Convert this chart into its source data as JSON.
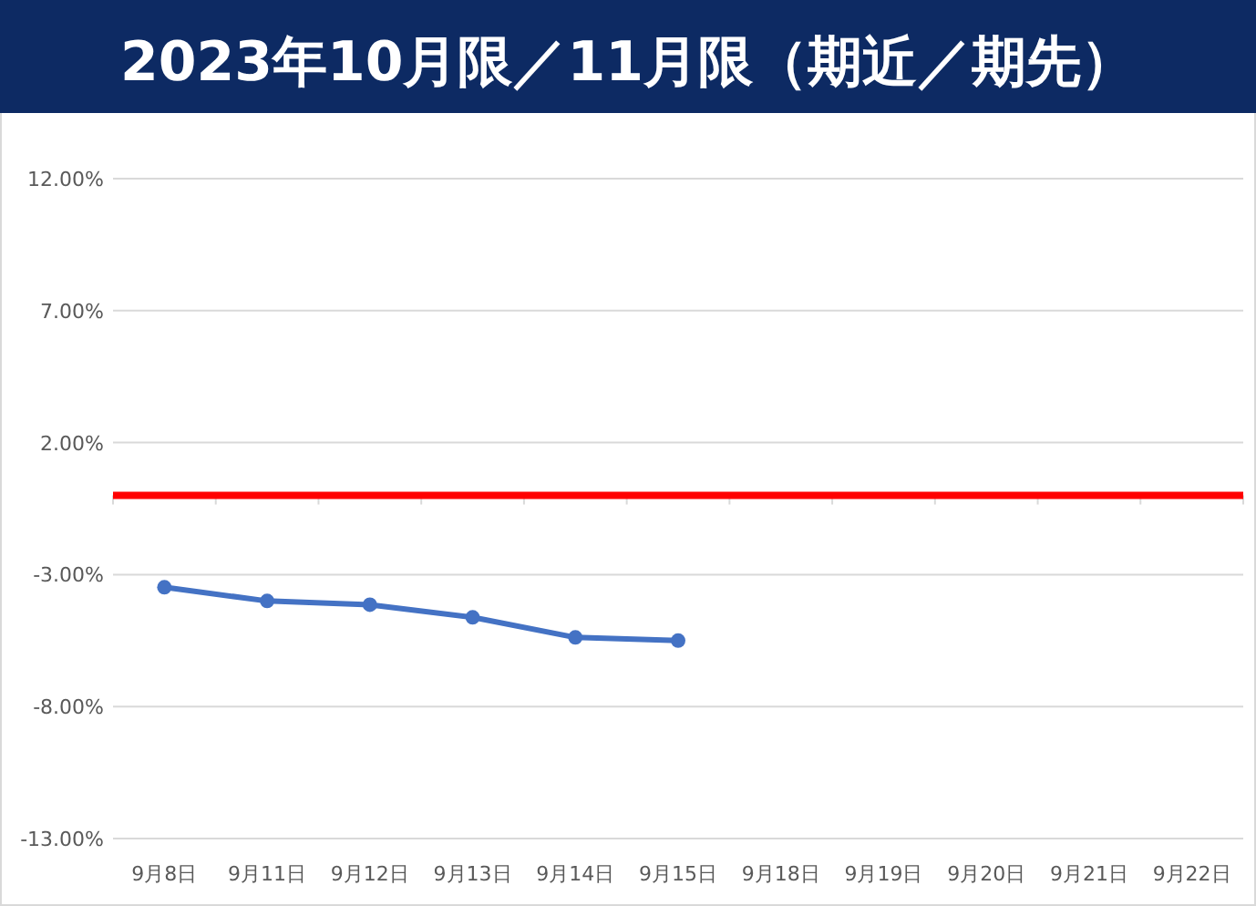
{
  "chart_data": {
    "type": "line",
    "title": "2023年10月限／11月限（期近／期先）",
    "categories": [
      "9月8日",
      "9月11日",
      "9月12日",
      "9月13日",
      "9月14日",
      "9月15日",
      "9月18日",
      "9月19日",
      "9月20日",
      "9月21日",
      "9月22日"
    ],
    "series": [
      {
        "color": "#4472c4",
        "values": [
          -3.48,
          -4.0,
          -4.14,
          -4.62,
          -5.38,
          -5.5,
          null,
          null,
          null,
          null,
          null
        ]
      }
    ],
    "ylim": [
      -13,
      12
    ],
    "yticks": [
      {
        "value": -13,
        "label": "-13.00%"
      },
      {
        "value": -8,
        "label": "-8.00%"
      },
      {
        "value": -3,
        "label": "-3.00%"
      },
      {
        "value": 2,
        "label": "2.00%"
      },
      {
        "value": 7,
        "label": "7.00%"
      },
      {
        "value": 12,
        "label": "12.00%"
      }
    ],
    "ref_lines": [
      {
        "axis": "y",
        "value": 0,
        "color": "#ff0000"
      }
    ],
    "grid": "y",
    "marker": "circle",
    "line_style": "solid"
  }
}
